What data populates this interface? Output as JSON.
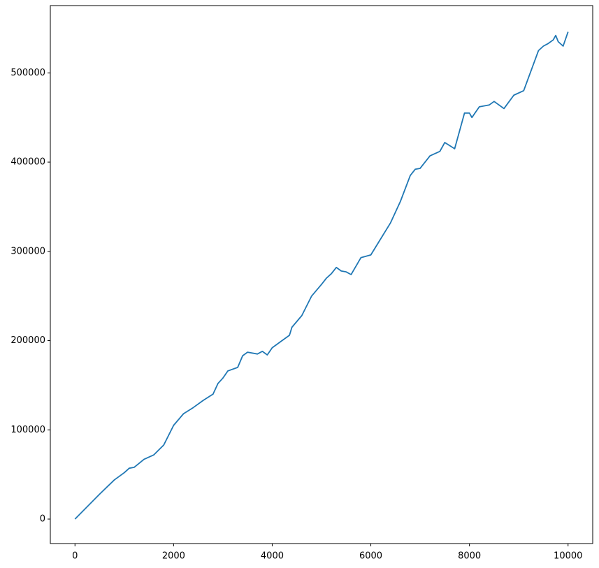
{
  "chart_data": {
    "type": "line",
    "x": [
      0,
      500,
      800,
      1000,
      1100,
      1200,
      1400,
      1600,
      1800,
      2000,
      2200,
      2400,
      2600,
      2800,
      2900,
      3000,
      3100,
      3300,
      3400,
      3500,
      3700,
      3800,
      3900,
      4000,
      4200,
      4350,
      4400,
      4600,
      4800,
      5000,
      5100,
      5200,
      5300,
      5400,
      5500,
      5600,
      5800,
      6000,
      6100,
      6200,
      6400,
      6600,
      6800,
      6900,
      7000,
      7200,
      7400,
      7500,
      7700,
      7800,
      7900,
      8000,
      8050,
      8200,
      8400,
      8500,
      8700,
      8900,
      9100,
      9200,
      9300,
      9400,
      9500,
      9600,
      9700,
      9750,
      9800,
      9900,
      10000
    ],
    "series": [
      {
        "color": "#1f77b4",
        "values": [
          0,
          28000,
          44000,
          52000,
          57000,
          58000,
          67000,
          72000,
          83000,
          105000,
          118000,
          125000,
          133000,
          140000,
          152000,
          158000,
          166000,
          170000,
          183000,
          187000,
          185000,
          188000,
          184000,
          192000,
          200000,
          206000,
          215000,
          228000,
          250000,
          263000,
          270000,
          275000,
          282000,
          278000,
          277000,
          274000,
          293000,
          296000,
          305000,
          314000,
          332000,
          356000,
          385000,
          392000,
          393000,
          407000,
          412000,
          422000,
          415000,
          435000,
          455000,
          455000,
          450000,
          462000,
          464000,
          468000,
          460000,
          475000,
          480000,
          495000,
          510000,
          525000,
          530000,
          533000,
          537000,
          542000,
          535000,
          530000,
          546000
        ]
      }
    ],
    "xlim": [
      -500,
      10500
    ],
    "xticks": [
      0,
      2000,
      4000,
      6000,
      8000,
      10000
    ],
    "ylim": [
      -27400,
      575400
    ],
    "yticks": [
      0,
      100000,
      200000,
      300000,
      400000,
      500000
    ],
    "grid": false
  }
}
